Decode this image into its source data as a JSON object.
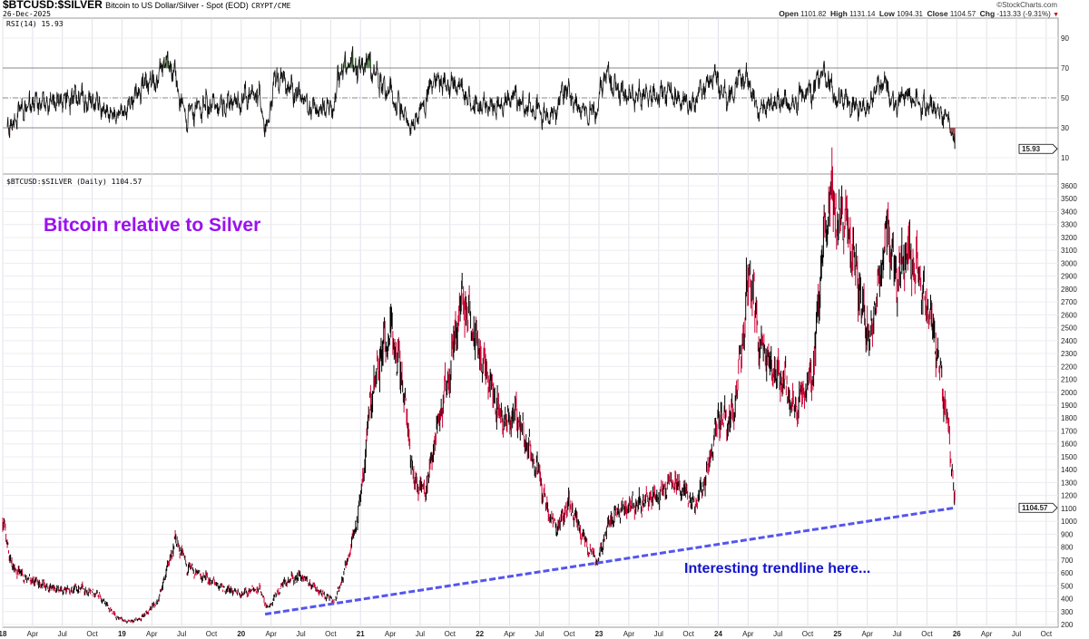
{
  "header": {
    "symbol": "$BTCUSD:$SILVER",
    "description": "Bitcoin to US Dollar/Silver - Spot (EOD)",
    "exchange": "CRYPT/CME",
    "date": "26-Dec-2025",
    "brand": "©StockCharts.com",
    "ohlc": {
      "open_label": "Open",
      "open": "1101.82",
      "high_label": "High",
      "high": "1131.14",
      "low_label": "Low",
      "low": "1094.31",
      "close_label": "Close",
      "close": "1104.57",
      "chg_label": "Chg",
      "chg": "-113.33 (-9.31%)"
    }
  },
  "colors": {
    "up": "#000000",
    "down": "#cc0033",
    "overbought": "#5a8a4a",
    "oversold": "#9a4a50",
    "trendline": "#5555ee",
    "title": "#9b10f0",
    "annotation": "#1414cc"
  },
  "chart_data": [
    {
      "type": "line",
      "panel": "rsi",
      "label": "RSI(14) 15.93",
      "current_value_label": "15.93",
      "ylim": [
        0,
        100
      ],
      "yticks": [
        10,
        30,
        50,
        70,
        90
      ],
      "reference_lines": [
        30,
        50,
        70
      ]
    },
    {
      "type": "candlestick",
      "panel": "price",
      "label": "$BTCUSD:$SILVER (Daily) 1104.57",
      "current_value_label": "1104.57",
      "title": "Bitcoin relative to Silver",
      "annotation": "Interesting trendline here...",
      "ylim": [
        200,
        3650
      ],
      "yticks": [
        200,
        300,
        400,
        500,
        600,
        700,
        800,
        900,
        1000,
        1100,
        1200,
        1300,
        1400,
        1500,
        1600,
        1700,
        1800,
        1900,
        2000,
        2100,
        2200,
        2300,
        2400,
        2500,
        2600,
        2700,
        2800,
        2900,
        3000,
        3100,
        3200,
        3300,
        3400,
        3500,
        3600
      ],
      "xlim": [
        2018.0,
        2026.85
      ],
      "xticks": [
        {
          "t": 2018.0,
          "label": "18",
          "year": true
        },
        {
          "t": 2018.25,
          "label": "Apr"
        },
        {
          "t": 2018.5,
          "label": "Jul"
        },
        {
          "t": 2018.75,
          "label": "Oct"
        },
        {
          "t": 2019.0,
          "label": "19",
          "year": true
        },
        {
          "t": 2019.25,
          "label": "Apr"
        },
        {
          "t": 2019.5,
          "label": "Jul"
        },
        {
          "t": 2019.75,
          "label": "Oct"
        },
        {
          "t": 2020.0,
          "label": "20",
          "year": true
        },
        {
          "t": 2020.25,
          "label": "Apr"
        },
        {
          "t": 2020.5,
          "label": "Jul"
        },
        {
          "t": 2020.75,
          "label": "Oct"
        },
        {
          "t": 2021.0,
          "label": "21",
          "year": true
        },
        {
          "t": 2021.25,
          "label": "Apr"
        },
        {
          "t": 2021.5,
          "label": "Jul"
        },
        {
          "t": 2021.75,
          "label": "Oct"
        },
        {
          "t": 2022.0,
          "label": "22",
          "year": true
        },
        {
          "t": 2022.25,
          "label": "Apr"
        },
        {
          "t": 2022.5,
          "label": "Jul"
        },
        {
          "t": 2022.75,
          "label": "Oct"
        },
        {
          "t": 2023.0,
          "label": "23",
          "year": true
        },
        {
          "t": 2023.25,
          "label": "Apr"
        },
        {
          "t": 2023.5,
          "label": "Jul"
        },
        {
          "t": 2023.75,
          "label": "Oct"
        },
        {
          "t": 2024.0,
          "label": "24",
          "year": true
        },
        {
          "t": 2024.25,
          "label": "Apr"
        },
        {
          "t": 2024.5,
          "label": "Jul"
        },
        {
          "t": 2024.75,
          "label": "Oct"
        },
        {
          "t": 2025.0,
          "label": "25",
          "year": true
        },
        {
          "t": 2025.25,
          "label": "Apr"
        },
        {
          "t": 2025.5,
          "label": "Jul"
        },
        {
          "t": 2025.75,
          "label": "Oct"
        },
        {
          "t": 2026.0,
          "label": "26",
          "year": true
        },
        {
          "t": 2026.25,
          "label": "Apr"
        },
        {
          "t": 2026.5,
          "label": "Jul"
        },
        {
          "t": 2026.75,
          "label": "Oct"
        }
      ],
      "points": [
        [
          2018.0,
          1000
        ],
        [
          2018.08,
          640
        ],
        [
          2018.2,
          560
        ],
        [
          2018.35,
          500
        ],
        [
          2018.5,
          460
        ],
        [
          2018.65,
          480
        ],
        [
          2018.8,
          430
        ],
        [
          2018.95,
          260
        ],
        [
          2019.05,
          220
        ],
        [
          2019.15,
          240
        ],
        [
          2019.3,
          380
        ],
        [
          2019.45,
          860
        ],
        [
          2019.55,
          640
        ],
        [
          2019.7,
          560
        ],
        [
          2019.85,
          480
        ],
        [
          2020.0,
          440
        ],
        [
          2020.15,
          480
        ],
        [
          2020.22,
          320
        ],
        [
          2020.35,
          520
        ],
        [
          2020.5,
          580
        ],
        [
          2020.65,
          460
        ],
        [
          2020.78,
          380
        ],
        [
          2020.85,
          560
        ],
        [
          2020.93,
          850
        ],
        [
          2021.0,
          1150
        ],
        [
          2021.08,
          1900
        ],
        [
          2021.15,
          2200
        ],
        [
          2021.25,
          2500
        ],
        [
          2021.35,
          2100
        ],
        [
          2021.45,
          1300
        ],
        [
          2021.55,
          1250
        ],
        [
          2021.65,
          1750
        ],
        [
          2021.75,
          2200
        ],
        [
          2021.85,
          2750
        ],
        [
          2021.95,
          2450
        ],
        [
          2022.05,
          2150
        ],
        [
          2022.2,
          1750
        ],
        [
          2022.3,
          1850
        ],
        [
          2022.4,
          1600
        ],
        [
          2022.5,
          1350
        ],
        [
          2022.58,
          1050
        ],
        [
          2022.65,
          950
        ],
        [
          2022.75,
          1150
        ],
        [
          2022.85,
          900
        ],
        [
          2022.93,
          760
        ],
        [
          2022.99,
          690
        ],
        [
          2023.08,
          1000
        ],
        [
          2023.2,
          1100
        ],
        [
          2023.35,
          1150
        ],
        [
          2023.5,
          1200
        ],
        [
          2023.6,
          1320
        ],
        [
          2023.7,
          1250
        ],
        [
          2023.8,
          1120
        ],
        [
          2023.9,
          1350
        ],
        [
          2024.0,
          1800
        ],
        [
          2024.12,
          1800
        ],
        [
          2024.2,
          2350
        ],
        [
          2024.26,
          2950
        ],
        [
          2024.35,
          2350
        ],
        [
          2024.45,
          2200
        ],
        [
          2024.55,
          2100
        ],
        [
          2024.63,
          1850
        ],
        [
          2024.72,
          2000
        ],
        [
          2024.8,
          2150
        ],
        [
          2024.84,
          2700
        ],
        [
          2024.9,
          3300
        ],
        [
          2024.95,
          3550
        ],
        [
          2025.0,
          3300
        ],
        [
          2025.05,
          3420
        ],
        [
          2025.12,
          3100
        ],
        [
          2025.2,
          2700
        ],
        [
          2025.27,
          2400
        ],
        [
          2025.35,
          2850
        ],
        [
          2025.42,
          3300
        ],
        [
          2025.5,
          2850
        ],
        [
          2025.58,
          3150
        ],
        [
          2025.66,
          2950
        ],
        [
          2025.74,
          2700
        ],
        [
          2025.8,
          2500
        ],
        [
          2025.85,
          2200
        ],
        [
          2025.9,
          1900
        ],
        [
          2025.94,
          1600
        ],
        [
          2025.97,
          1300
        ],
        [
          2025.985,
          1104.57
        ]
      ],
      "trendline": {
        "from": [
          2020.2,
          280
        ],
        "to": [
          2025.985,
          1104.57
        ]
      }
    }
  ]
}
